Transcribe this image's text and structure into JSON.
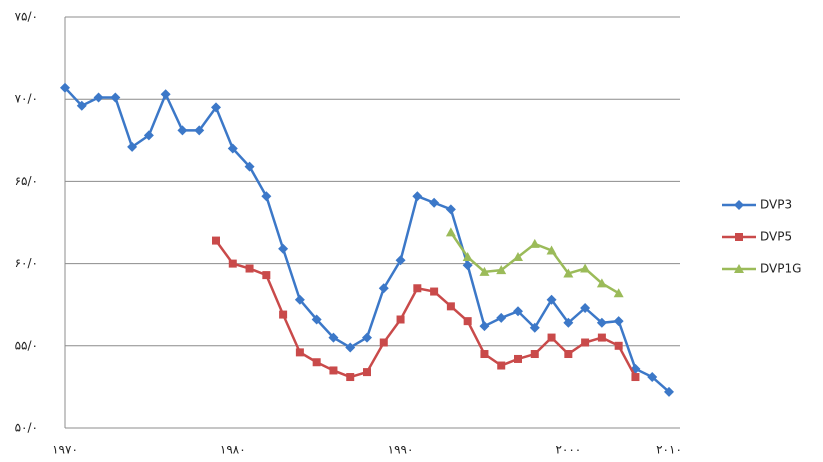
{
  "chart_data": {
    "type": "line",
    "categories": [
      "۱۹۷۰",
      null,
      null,
      null,
      null,
      null,
      null,
      null,
      null,
      null,
      "۱۹۸۰",
      null,
      null,
      null,
      null,
      null,
      null,
      null,
      null,
      null,
      "۱۹۹۰",
      null,
      null,
      null,
      null,
      null,
      null,
      null,
      null,
      null,
      "۲۰۰۰",
      null,
      null,
      null,
      null,
      null,
      "۲۰۱۰"
    ],
    "series": [
      {
        "name": "DVP3",
        "color": "#3c78c8",
        "marker": "diamond",
        "values": [
          70.7,
          69.6,
          70.1,
          70.1,
          67.1,
          67.8,
          70.3,
          68.1,
          68.1,
          69.5,
          67.0,
          65.9,
          64.1,
          60.9,
          57.8,
          56.6,
          55.5,
          54.9,
          55.5,
          58.5,
          60.2,
          64.1,
          63.7,
          63.3,
          59.9,
          56.2,
          56.7,
          57.1,
          56.1,
          57.8,
          56.4,
          57.3,
          56.4,
          56.5,
          53.6,
          53.1,
          52.2
        ]
      },
      {
        "name": "DVP5",
        "color": "#c94a4a",
        "marker": "square",
        "values": [
          null,
          null,
          null,
          null,
          null,
          null,
          null,
          null,
          null,
          61.4,
          60.0,
          59.7,
          59.3,
          56.9,
          54.6,
          54.0,
          53.5,
          53.1,
          53.4,
          55.2,
          56.6,
          58.5,
          58.3,
          57.4,
          56.5,
          54.5,
          53.8,
          54.2,
          54.5,
          55.5,
          54.5,
          55.2,
          55.5,
          55.0,
          53.1,
          null,
          null
        ]
      },
      {
        "name": "DVP1G",
        "color": "#9bbb59",
        "marker": "triangle",
        "values": [
          null,
          null,
          null,
          null,
          null,
          null,
          null,
          null,
          null,
          null,
          null,
          null,
          null,
          null,
          null,
          null,
          null,
          null,
          null,
          null,
          null,
          null,
          null,
          61.9,
          60.4,
          59.5,
          59.6,
          60.4,
          61.2,
          60.8,
          59.4,
          59.7,
          58.8,
          58.2,
          null,
          null,
          null
        ]
      }
    ],
    "ylim": [
      50,
      75
    ],
    "yticks": [
      {
        "value": 50,
        "label": "۵۰/۰"
      },
      {
        "value": 55,
        "label": "۵۵/۰"
      },
      {
        "value": 60,
        "label": "۶۰/۰"
      },
      {
        "value": 65,
        "label": "۶۵/۰"
      },
      {
        "value": 70,
        "label": "۷۰/۰"
      },
      {
        "value": 75,
        "label": "۷۵/۰"
      }
    ],
    "grid": true,
    "legend": "right"
  }
}
